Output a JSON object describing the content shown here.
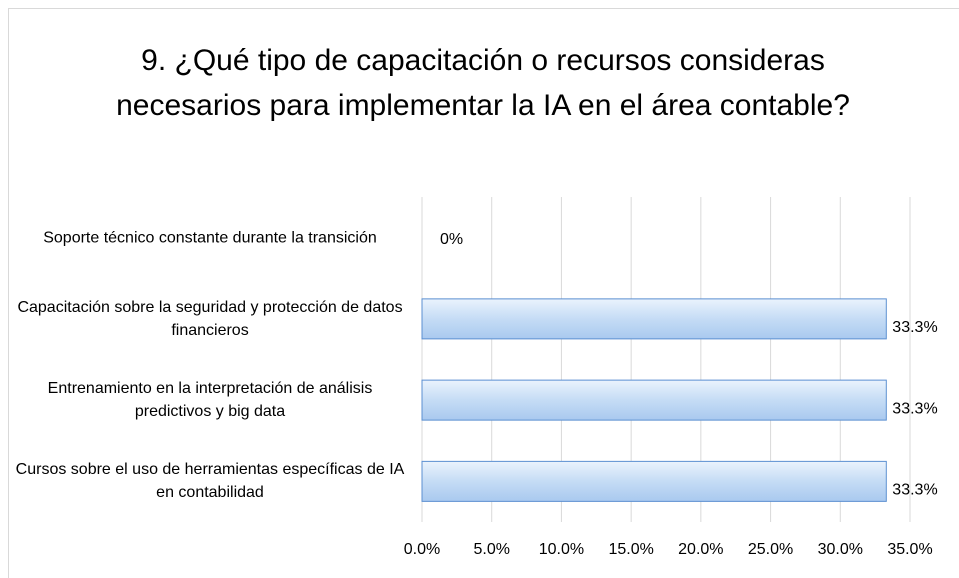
{
  "chart_data": {
    "type": "bar",
    "orientation": "horizontal",
    "title": "9. ¿Qué tipo de capacitación o recursos consideras necesarios para implementar la IA en el área contable?",
    "categories": [
      "Soporte técnico constante durante la transición",
      "Capacitación sobre la seguridad y protección de datos financieros",
      "Entrenamiento en la interpretación de análisis predictivos y big data",
      "Cursos sobre el uso de herramientas específicas de IA en contabilidad"
    ],
    "values": [
      0,
      33.3,
      33.3,
      33.3
    ],
    "value_labels": [
      "0%",
      "33.3%",
      "33.3%",
      "33.3%"
    ],
    "color": "#c5dcf5",
    "xlim": [
      0,
      35
    ],
    "xticks": [
      {
        "value": 0,
        "label": "0.0%"
      },
      {
        "value": 5,
        "label": "5.0%"
      },
      {
        "value": 10,
        "label": "10.0%"
      },
      {
        "value": 15,
        "label": "15.0%"
      },
      {
        "value": 20,
        "label": "20.0%"
      },
      {
        "value": 25,
        "label": "25.0%"
      },
      {
        "value": 30,
        "label": "30.0%"
      },
      {
        "value": 35,
        "label": "35.0%"
      }
    ],
    "grid": true
  }
}
